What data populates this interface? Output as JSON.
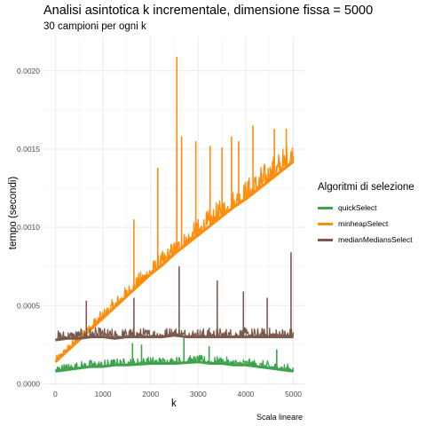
{
  "chart_data": {
    "type": "line",
    "title": "Analisi asintotica k incrementale, dimensione fissa = 5000",
    "subtitle": "30 campioni per ogni k",
    "caption": "Scala lineare",
    "xlabel": "k",
    "ylabel": "tempo (secondi)",
    "xlim": [
      -250,
      5250
    ],
    "ylim": [
      -2e-05,
      0.00222
    ],
    "x_ticks": [
      0,
      1000,
      2000,
      3000,
      4000,
      5000
    ],
    "x_tick_labels": [
      "0",
      "1000",
      "2000",
      "3000",
      "4000",
      "5000"
    ],
    "y_ticks": [
      0.0,
      0.0005,
      0.001,
      0.0015,
      0.002
    ],
    "y_tick_labels": [
      "0.0000",
      "0.0005",
      "0.0010",
      "0.0015",
      "0.0020"
    ],
    "grid": true,
    "legend_title": "Algoritmi di selezione",
    "legend_position": "right",
    "series": [
      {
        "name": "quickSelect",
        "color": "#3fa34d",
        "x": [
          0,
          250,
          500,
          750,
          1000,
          1250,
          1500,
          1750,
          2000,
          2250,
          2500,
          2750,
          3000,
          3250,
          3500,
          3750,
          4000,
          4250,
          4500,
          4750,
          5000
        ],
        "values": [
          8e-05,
          9e-05,
          0.0001,
          0.00011,
          0.00011,
          0.00012,
          0.00012,
          0.000125,
          0.00013,
          0.00013,
          0.00013,
          0.000135,
          0.00014,
          0.00013,
          0.00013,
          0.00012,
          0.00012,
          0.00011,
          0.0001,
          9e-05,
          8e-05
        ],
        "spikes": [
          [
            1620,
            0.00026
          ],
          [
            1810,
            0.00025
          ],
          [
            2700,
            0.0003
          ],
          [
            3230,
            0.00024
          ],
          [
            4650,
            0.00022
          ]
        ]
      },
      {
        "name": "minheapSelect",
        "color": "#ff8c0a",
        "x": [
          0,
          250,
          500,
          750,
          1000,
          1250,
          1500,
          1750,
          2000,
          2250,
          2500,
          2750,
          3000,
          3250,
          3500,
          3750,
          4000,
          4250,
          4500,
          4750,
          5000
        ],
        "values": [
          0.00014,
          0.00021,
          0.00028,
          0.00035,
          0.00042,
          0.00049,
          0.00056,
          0.00063,
          0.0007,
          0.00076,
          0.00083,
          0.00089,
          0.00095,
          0.00101,
          0.00107,
          0.00113,
          0.00118,
          0.00124,
          0.0013,
          0.00136,
          0.00142
        ],
        "spikes": [
          [
            2550,
            0.00209
          ],
          [
            1650,
            0.00105
          ],
          [
            2150,
            0.00138
          ],
          [
            2650,
            0.00158
          ],
          [
            2950,
            0.00155
          ],
          [
            3250,
            0.00152
          ],
          [
            3500,
            0.00151
          ],
          [
            3700,
            0.00158
          ],
          [
            3850,
            0.00155
          ],
          [
            4150,
            0.00165
          ],
          [
            4600,
            0.00163
          ],
          [
            4850,
            0.00163
          ]
        ]
      },
      {
        "name": "medianMediansSelect",
        "color": "#7b5a4e",
        "x": [
          0,
          250,
          500,
          750,
          1000,
          1250,
          1500,
          1750,
          2000,
          2250,
          2500,
          2750,
          3000,
          3250,
          3500,
          3750,
          4000,
          4250,
          4500,
          4750,
          5000
        ],
        "values": [
          0.00028,
          0.00029,
          0.00029,
          0.0003,
          0.0003,
          0.00029,
          0.0003,
          0.0003,
          0.0003,
          0.0003,
          0.00031,
          0.0003,
          0.0003,
          0.0003,
          0.0003,
          0.0003,
          0.0003,
          0.0003,
          0.0003,
          0.0003,
          0.0003
        ],
        "spikes": [
          [
            650,
            0.00053
          ],
          [
            1650,
            0.00055
          ],
          [
            2600,
            0.00075
          ],
          [
            3400,
            0.00066
          ],
          [
            3950,
            0.00059
          ],
          [
            4450,
            0.00055
          ],
          [
            4950,
            0.00084
          ]
        ]
      }
    ]
  }
}
